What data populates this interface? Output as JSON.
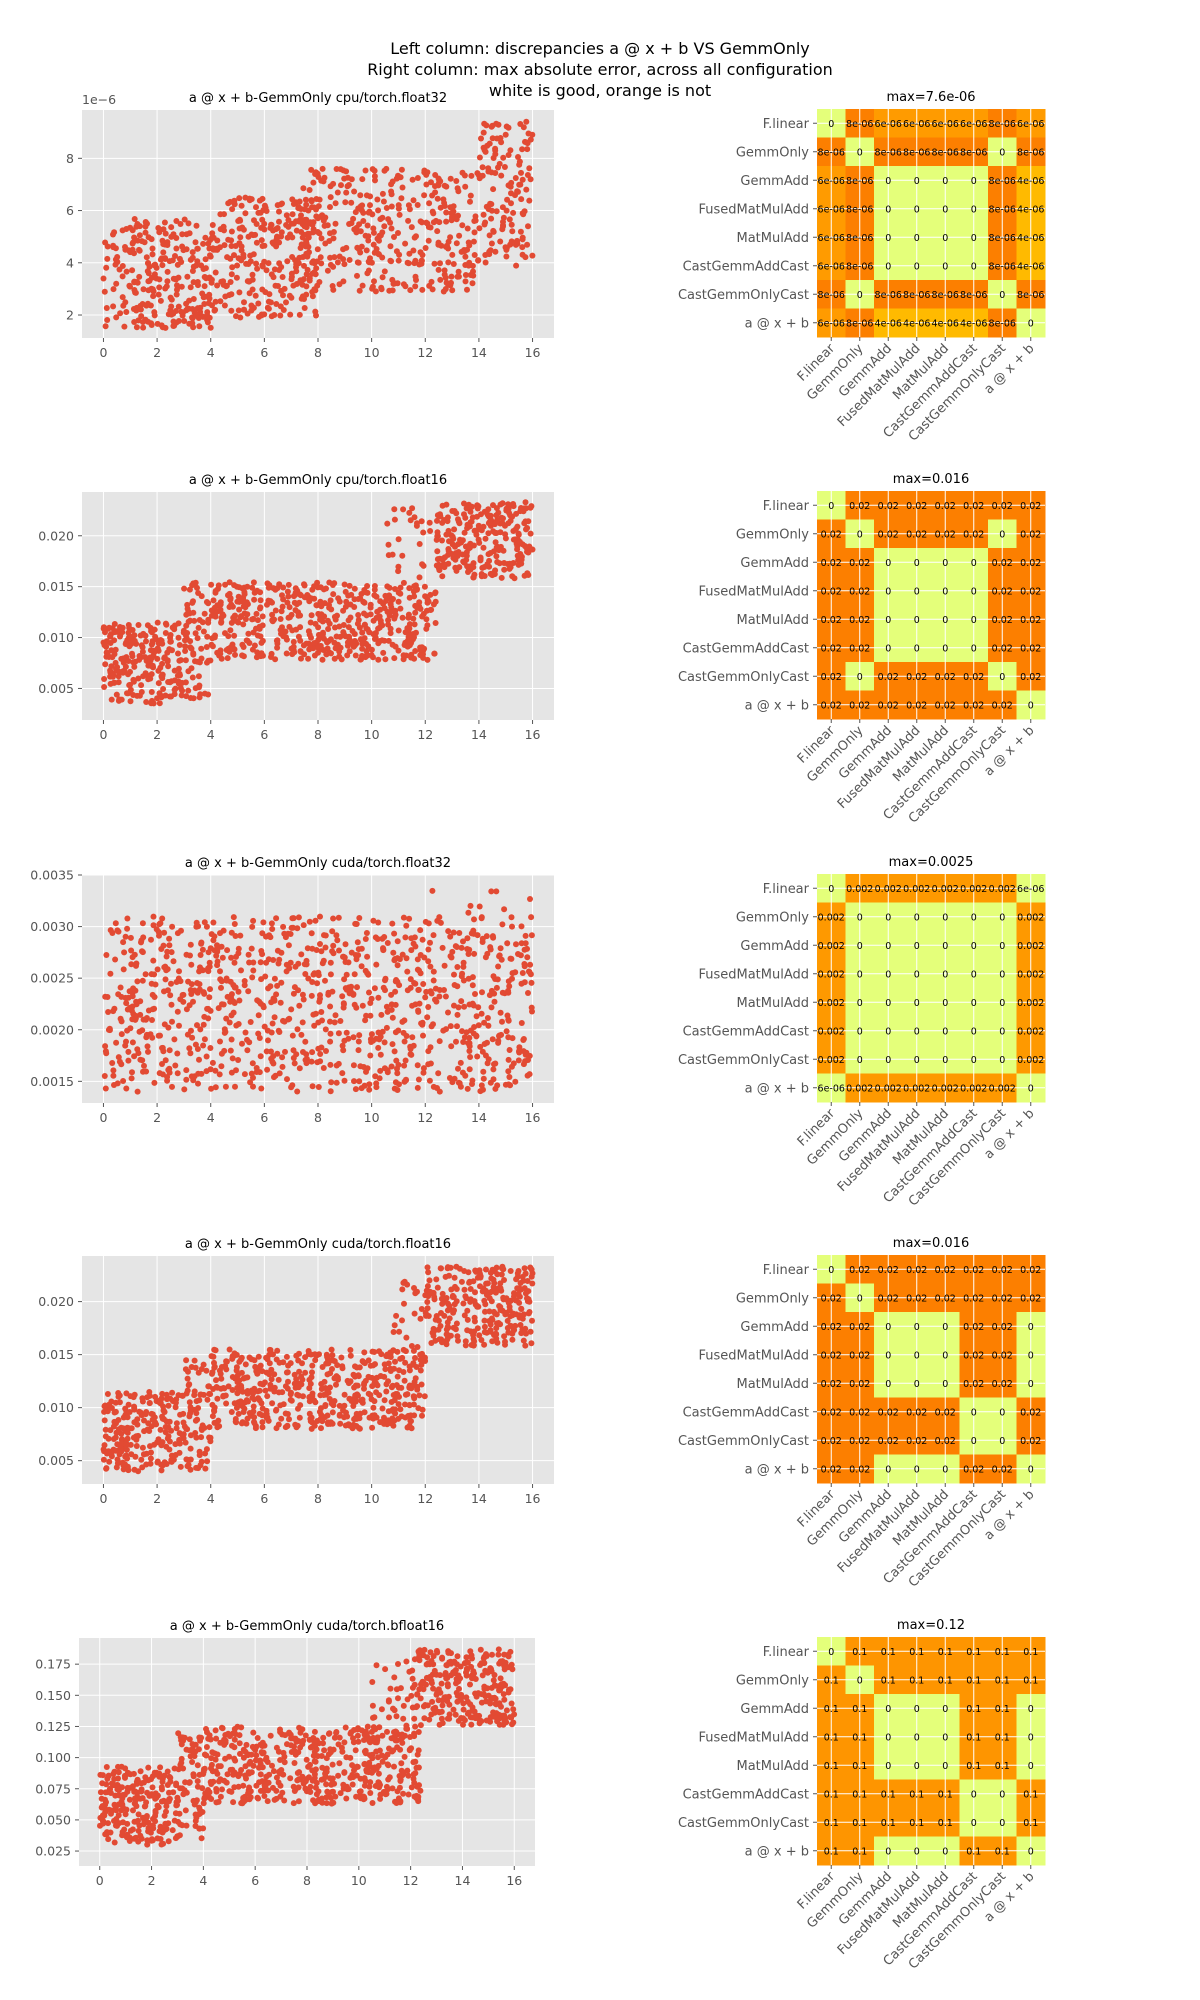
{
  "suptitle": [
    "Left column: discrepancies a @ x + b VS GemmOnly",
    "Right column: max absolute error, across all configuration",
    "white is good, orange is not"
  ],
  "colors": {
    "point": "#e24a33",
    "plot_bg": "#e5e5e5",
    "grid": "#ffffff",
    "colormap": "Wistia",
    "cmap_low": "#e4ff7a",
    "cmap_high": "#fc7f00"
  },
  "chart_data": [
    {
      "type": "scatter",
      "title": "a @ x + b-GemmOnly cpu/torch.float32",
      "offset_label": "1e−6",
      "xlim": [
        -0.8,
        16.8
      ],
      "ylim": [
        1.12e-06,
        9.85e-06
      ],
      "xticks": [
        "0",
        "2",
        "4",
        "6",
        "8",
        "10",
        "12",
        "14",
        "16"
      ],
      "yticks": [
        {
          "v": 2e-06,
          "label": "2"
        },
        {
          "v": 4e-06,
          "label": "4"
        },
        {
          "v": 6e-06,
          "label": "6"
        },
        {
          "v": 8e-06,
          "label": "8"
        }
      ],
      "grid": true,
      "point_bands": [
        {
          "x": [
            0,
            4
          ],
          "y": [
            1.5e-06,
            5.7e-06
          ],
          "n": 260
        },
        {
          "x": [
            4,
            8
          ],
          "y": [
            1.9e-06,
            6.5e-06
          ],
          "n": 250
        },
        {
          "x": [
            7,
            12
          ],
          "y": [
            2.9e-06,
            7.6e-06
          ],
          "n": 260
        },
        {
          "x": [
            12,
            14
          ],
          "y": [
            2.9e-06,
            7.5e-06
          ],
          "n": 120
        },
        {
          "x": [
            14,
            16
          ],
          "y": [
            3.8e-06,
            9.5e-06
          ],
          "n": 130
        }
      ]
    },
    {
      "type": "scatter",
      "title": "a @ x + b-GemmOnly cpu/torch.float16",
      "xlim": [
        -0.8,
        16.8
      ],
      "ylim": [
        0.0019,
        0.0243
      ],
      "xticks": [
        "0",
        "2",
        "4",
        "6",
        "8",
        "10",
        "12",
        "14",
        "16"
      ],
      "yticks": [
        {
          "v": 0.005,
          "label": "0.005"
        },
        {
          "v": 0.01,
          "label": "0.010"
        },
        {
          "v": 0.015,
          "label": "0.015"
        },
        {
          "v": 0.02,
          "label": "0.020"
        }
      ],
      "grid": true,
      "point_bands": [
        {
          "x": [
            0,
            3
          ],
          "y": [
            0.0035,
            0.0115
          ],
          "n": 220
        },
        {
          "x": [
            3,
            4
          ],
          "y": [
            0.004,
            0.0155
          ],
          "n": 70
        },
        {
          "x": [
            4,
            12.4
          ],
          "y": [
            0.0078,
            0.0155
          ],
          "n": 520
        },
        {
          "x": [
            10.5,
            12.3
          ],
          "y": [
            0.0155,
            0.023
          ],
          "n": 25
        },
        {
          "x": [
            12.4,
            16
          ],
          "y": [
            0.0158,
            0.0233
          ],
          "n": 250
        }
      ]
    },
    {
      "type": "scatter",
      "title": "a @ x + b-GemmOnly cuda/torch.float32",
      "xlim": [
        -0.8,
        16.8
      ],
      "ylim": [
        0.00129,
        0.0035
      ],
      "xticks": [
        "0",
        "2",
        "4",
        "6",
        "8",
        "10",
        "12",
        "14",
        "16"
      ],
      "yticks": [
        {
          "v": 0.0015,
          "label": "0.0015"
        },
        {
          "v": 0.002,
          "label": "0.0020"
        },
        {
          "v": 0.0025,
          "label": "0.0025"
        },
        {
          "v": 0.003,
          "label": "0.0030"
        },
        {
          "v": 0.0035,
          "label": "0.0035"
        }
      ],
      "grid": true,
      "point_bands": [
        {
          "x": [
            0,
            16
          ],
          "y": [
            0.0014,
            0.0031
          ],
          "n": 1000
        },
        {
          "x": [
            12,
            16
          ],
          "y": [
            0.0029,
            0.0034
          ],
          "n": 10
        }
      ]
    },
    {
      "type": "scatter",
      "title": "a @ x + b-GemmOnly cuda/torch.float16",
      "xlim": [
        -0.8,
        16.8
      ],
      "ylim": [
        0.0028,
        0.0243
      ],
      "xticks": [
        "0",
        "2",
        "4",
        "6",
        "8",
        "10",
        "12",
        "14",
        "16"
      ],
      "yticks": [
        {
          "v": 0.005,
          "label": "0.005"
        },
        {
          "v": 0.01,
          "label": "0.010"
        },
        {
          "v": 0.015,
          "label": "0.015"
        },
        {
          "v": 0.02,
          "label": "0.020"
        }
      ],
      "grid": true,
      "point_bands": [
        {
          "x": [
            0,
            3
          ],
          "y": [
            0.004,
            0.0115
          ],
          "n": 220
        },
        {
          "x": [
            3,
            4
          ],
          "y": [
            0.004,
            0.015
          ],
          "n": 70
        },
        {
          "x": [
            4,
            12
          ],
          "y": [
            0.008,
            0.0155
          ],
          "n": 500
        },
        {
          "x": [
            10.8,
            12.5
          ],
          "y": [
            0.0155,
            0.022
          ],
          "n": 25
        },
        {
          "x": [
            12,
            16
          ],
          "y": [
            0.0158,
            0.0233
          ],
          "n": 270
        }
      ]
    },
    {
      "type": "scatter",
      "title": "a @ x + b-GemmOnly cuda/torch.bfloat16",
      "xlim": [
        -0.8,
        16.8
      ],
      "ylim": [
        0.013,
        0.196
      ],
      "xticks": [
        "0",
        "2",
        "4",
        "6",
        "8",
        "10",
        "12",
        "14",
        "16"
      ],
      "yticks": [
        {
          "v": 0.025,
          "label": "0.025"
        },
        {
          "v": 0.05,
          "label": "0.050"
        },
        {
          "v": 0.075,
          "label": "0.075"
        },
        {
          "v": 0.1,
          "label": "0.100"
        },
        {
          "v": 0.125,
          "label": "0.125"
        },
        {
          "v": 0.15,
          "label": "0.150"
        },
        {
          "v": 0.175,
          "label": "0.175"
        }
      ],
      "grid": true,
      "point_bands": [
        {
          "x": [
            0,
            3
          ],
          "y": [
            0.03,
            0.093
          ],
          "n": 230
        },
        {
          "x": [
            3,
            4
          ],
          "y": [
            0.035,
            0.123
          ],
          "n": 70
        },
        {
          "x": [
            4,
            12.4
          ],
          "y": [
            0.063,
            0.125
          ],
          "n": 500
        },
        {
          "x": [
            10.5,
            12
          ],
          "y": [
            0.125,
            0.185
          ],
          "n": 25
        },
        {
          "x": [
            12,
            16
          ],
          "y": [
            0.125,
            0.187
          ],
          "n": 270
        }
      ]
    },
    {
      "type": "heatmap",
      "title": "max=7.6e-06",
      "vmax": 7.6e-06,
      "labels": [
        "F.linear",
        "GemmOnly",
        "GemmAdd",
        "FusedMatMulAdd",
        "MatMulAdd",
        "CastGemmAddCast",
        "CastGemmOnlyCast",
        "a @ x + b"
      ],
      "cells": [
        [
          "0",
          "8e-06",
          "6e-06",
          "6e-06",
          "6e-06",
          "6e-06",
          "8e-06",
          "6e-06"
        ],
        [
          "8e-06",
          "0",
          "8e-06",
          "8e-06",
          "8e-06",
          "8e-06",
          "0",
          "8e-06"
        ],
        [
          "6e-06",
          "8e-06",
          "0",
          "0",
          "0",
          "0",
          "8e-06",
          "4e-06"
        ],
        [
          "6e-06",
          "8e-06",
          "0",
          "0",
          "0",
          "0",
          "8e-06",
          "4e-06"
        ],
        [
          "6e-06",
          "8e-06",
          "0",
          "0",
          "0",
          "0",
          "8e-06",
          "4e-06"
        ],
        [
          "6e-06",
          "8e-06",
          "0",
          "0",
          "0",
          "0",
          "8e-06",
          "4e-06"
        ],
        [
          "8e-06",
          "0",
          "8e-06",
          "8e-06",
          "8e-06",
          "8e-06",
          "0",
          "8e-06"
        ],
        [
          "6e-06",
          "8e-06",
          "4e-06",
          "4e-06",
          "4e-06",
          "4e-06",
          "8e-06",
          "0"
        ]
      ]
    },
    {
      "type": "heatmap",
      "title": "max=0.016",
      "vmax": 0.016,
      "labels": [
        "F.linear",
        "GemmOnly",
        "GemmAdd",
        "FusedMatMulAdd",
        "MatMulAdd",
        "CastGemmAddCast",
        "CastGemmOnlyCast",
        "a @ x + b"
      ],
      "cells": [
        [
          "0",
          "0.02",
          "0.02",
          "0.02",
          "0.02",
          "0.02",
          "0.02",
          "0.02"
        ],
        [
          "0.02",
          "0",
          "0.02",
          "0.02",
          "0.02",
          "0.02",
          "0",
          "0.02"
        ],
        [
          "0.02",
          "0.02",
          "0",
          "0",
          "0",
          "0",
          "0.02",
          "0.02"
        ],
        [
          "0.02",
          "0.02",
          "0",
          "0",
          "0",
          "0",
          "0.02",
          "0.02"
        ],
        [
          "0.02",
          "0.02",
          "0",
          "0",
          "0",
          "0",
          "0.02",
          "0.02"
        ],
        [
          "0.02",
          "0.02",
          "0",
          "0",
          "0",
          "0",
          "0.02",
          "0.02"
        ],
        [
          "0.02",
          "0",
          "0.02",
          "0.02",
          "0.02",
          "0.02",
          "0",
          "0.02"
        ],
        [
          "0.02",
          "0.02",
          "0.02",
          "0.02",
          "0.02",
          "0.02",
          "0.02",
          "0"
        ]
      ]
    },
    {
      "type": "heatmap",
      "title": "max=0.0025",
      "vmax": 0.0025,
      "labels": [
        "F.linear",
        "GemmOnly",
        "GemmAdd",
        "FusedMatMulAdd",
        "MatMulAdd",
        "CastGemmAddCast",
        "CastGemmOnlyCast",
        "a @ x + b"
      ],
      "cells": [
        [
          "0",
          "0.002",
          "0.002",
          "0.002",
          "0.002",
          "0.002",
          "0.002",
          "6e-06"
        ],
        [
          "0.002",
          "0",
          "0",
          "0",
          "0",
          "0",
          "0",
          "0.002"
        ],
        [
          "0.002",
          "0",
          "0",
          "0",
          "0",
          "0",
          "0",
          "0.002"
        ],
        [
          "0.002",
          "0",
          "0",
          "0",
          "0",
          "0",
          "0",
          "0.002"
        ],
        [
          "0.002",
          "0",
          "0",
          "0",
          "0",
          "0",
          "0",
          "0.002"
        ],
        [
          "0.002",
          "0",
          "0",
          "0",
          "0",
          "0",
          "0",
          "0.002"
        ],
        [
          "0.002",
          "0",
          "0",
          "0",
          "0",
          "0",
          "0",
          "0.002"
        ],
        [
          "6e-06",
          "0.002",
          "0.002",
          "0.002",
          "0.002",
          "0.002",
          "0.002",
          "0"
        ]
      ]
    },
    {
      "type": "heatmap",
      "title": "max=0.016",
      "vmax": 0.016,
      "labels": [
        "F.linear",
        "GemmOnly",
        "GemmAdd",
        "FusedMatMulAdd",
        "MatMulAdd",
        "CastGemmAddCast",
        "CastGemmOnlyCast",
        "a @ x + b"
      ],
      "cells": [
        [
          "0",
          "0.02",
          "0.02",
          "0.02",
          "0.02",
          "0.02",
          "0.02",
          "0.02"
        ],
        [
          "0.02",
          "0",
          "0.02",
          "0.02",
          "0.02",
          "0.02",
          "0.02",
          "0.02"
        ],
        [
          "0.02",
          "0.02",
          "0",
          "0",
          "0",
          "0.02",
          "0.02",
          "0"
        ],
        [
          "0.02",
          "0.02",
          "0",
          "0",
          "0",
          "0.02",
          "0.02",
          "0"
        ],
        [
          "0.02",
          "0.02",
          "0",
          "0",
          "0",
          "0.02",
          "0.02",
          "0"
        ],
        [
          "0.02",
          "0.02",
          "0.02",
          "0.02",
          "0.02",
          "0",
          "0",
          "0.02"
        ],
        [
          "0.02",
          "0.02",
          "0.02",
          "0.02",
          "0.02",
          "0",
          "0",
          "0.02"
        ],
        [
          "0.02",
          "0.02",
          "0",
          "0",
          "0",
          "0.02",
          "0.02",
          "0"
        ]
      ]
    },
    {
      "type": "heatmap",
      "title": "max=0.12",
      "vmax": 0.12,
      "labels": [
        "F.linear",
        "GemmOnly",
        "GemmAdd",
        "FusedMatMulAdd",
        "MatMulAdd",
        "CastGemmAddCast",
        "CastGemmOnlyCast",
        "a @ x + b"
      ],
      "cells": [
        [
          "0",
          "0.1",
          "0.1",
          "0.1",
          "0.1",
          "0.1",
          "0.1",
          "0.1"
        ],
        [
          "0.1",
          "0",
          "0.1",
          "0.1",
          "0.1",
          "0.1",
          "0.1",
          "0.1"
        ],
        [
          "0.1",
          "0.1",
          "0",
          "0",
          "0",
          "0.1",
          "0.1",
          "0"
        ],
        [
          "0.1",
          "0.1",
          "0",
          "0",
          "0",
          "0.1",
          "0.1",
          "0"
        ],
        [
          "0.1",
          "0.1",
          "0",
          "0",
          "0",
          "0.1",
          "0.1",
          "0"
        ],
        [
          "0.1",
          "0.1",
          "0.1",
          "0.1",
          "0.1",
          "0",
          "0",
          "0.1"
        ],
        [
          "0.1",
          "0.1",
          "0.1",
          "0.1",
          "0.1",
          "0",
          "0",
          "0.1"
        ],
        [
          "0.1",
          "0.1",
          "0",
          "0",
          "0",
          "0.1",
          "0.1",
          "0"
        ]
      ]
    }
  ]
}
